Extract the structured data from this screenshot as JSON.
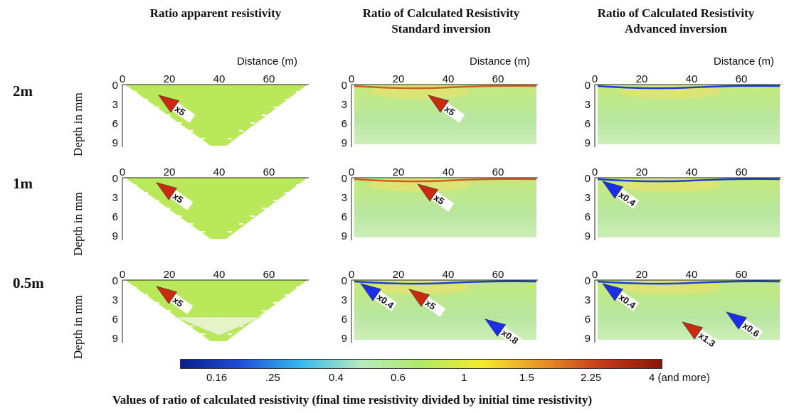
{
  "columns": [
    {
      "title1": "Ratio apparent resistivity",
      "title2": ""
    },
    {
      "title1": "Ratio of Calculated Resistivity",
      "title2": "Standard inversion"
    },
    {
      "title1": "Ratio of Calculated Resistivity",
      "title2": "Advanced inversion"
    }
  ],
  "rows": [
    {
      "label": "2m",
      "ylabel": "Depth in mm"
    },
    {
      "label": "1m",
      "ylabel": "Depth in mm"
    },
    {
      "label": "0.5m",
      "ylabel": "Depth in mm"
    }
  ],
  "x_axis_label": "Distance (m)",
  "x_ticks": [
    "0",
    "20",
    "40",
    "60"
  ],
  "y_ticks": [
    "0",
    "3",
    "6",
    "9"
  ],
  "panels": [
    {
      "row": 0,
      "col": 0,
      "kind": "apparent",
      "markers": [
        {
          "label": "x5",
          "color": "#cc2a10"
        }
      ]
    },
    {
      "row": 0,
      "col": 1,
      "kind": "inversion",
      "markers": [
        {
          "label": "x5",
          "color": "#cc2a10"
        }
      ]
    },
    {
      "row": 0,
      "col": 2,
      "kind": "inversion",
      "markers": []
    },
    {
      "row": 1,
      "col": 0,
      "kind": "apparent",
      "markers": [
        {
          "label": "x5",
          "color": "#cc2a10"
        }
      ]
    },
    {
      "row": 1,
      "col": 1,
      "kind": "inversion",
      "markers": [
        {
          "label": "x5",
          "color": "#cc2a10"
        }
      ]
    },
    {
      "row": 1,
      "col": 2,
      "kind": "inversion",
      "markers": [
        {
          "label": "x0.4",
          "color": "#1b2ee8"
        }
      ]
    },
    {
      "row": 2,
      "col": 0,
      "kind": "apparent",
      "markers": [
        {
          "label": "x5",
          "color": "#cc2a10"
        }
      ]
    },
    {
      "row": 2,
      "col": 1,
      "kind": "inversion",
      "markers": [
        {
          "label": "x0.4",
          "color": "#1b2ee8"
        },
        {
          "label": "x5",
          "color": "#cc2a10"
        },
        {
          "label": "x0.8",
          "color": "#1b2ee8"
        }
      ]
    },
    {
      "row": 2,
      "col": 2,
      "kind": "inversion",
      "markers": [
        {
          "label": "x0.4",
          "color": "#1b2ee8"
        },
        {
          "label": "x1.3",
          "color": "#cc2a10"
        },
        {
          "label": "x0.6",
          "color": "#1b2ee8"
        }
      ]
    }
  ],
  "colorbar": {
    "ticks": [
      "0.16",
      ".25",
      "0.4",
      "0.6",
      "1",
      "1.5",
      "2.25",
      "4 (and more)"
    ],
    "colors": [
      "#0a1f8a",
      "#1f4fd8",
      "#38b8ee",
      "#b6ecbc",
      "#b2e86a",
      "#f2ec2a",
      "#e89428",
      "#c43a18",
      "#8b1608"
    ]
  },
  "caption": "Values of ratio of calculated resistivity (final time resistivity divided by initial time resistivity)"
}
